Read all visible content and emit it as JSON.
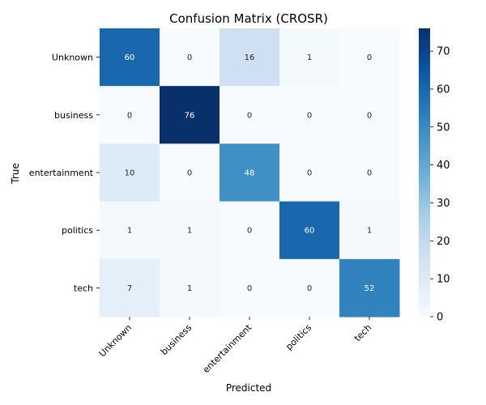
{
  "chart_data": {
    "type": "heatmap",
    "title": "Confusion Matrix (CROSR)",
    "xlabel": "Predicted",
    "ylabel": "True",
    "x_categories": [
      "Unknown",
      "business",
      "entertainment",
      "politics",
      "tech"
    ],
    "y_categories": [
      "Unknown",
      "business",
      "entertainment",
      "politics",
      "tech"
    ],
    "values": [
      [
        60,
        0,
        16,
        1,
        0
      ],
      [
        0,
        76,
        0,
        0,
        0
      ],
      [
        10,
        0,
        48,
        0,
        0
      ],
      [
        1,
        1,
        0,
        60,
        1
      ],
      [
        7,
        1,
        0,
        0,
        52
      ]
    ],
    "colormap": "Blues",
    "color_range": [
      0,
      76
    ],
    "colorbar": {
      "ticks": [
        0,
        10,
        20,
        30,
        40,
        50,
        60,
        70
      ],
      "labels": [
        "0",
        "10",
        "20",
        "30",
        "40",
        "50",
        "60",
        "70"
      ]
    },
    "annotations": true
  }
}
